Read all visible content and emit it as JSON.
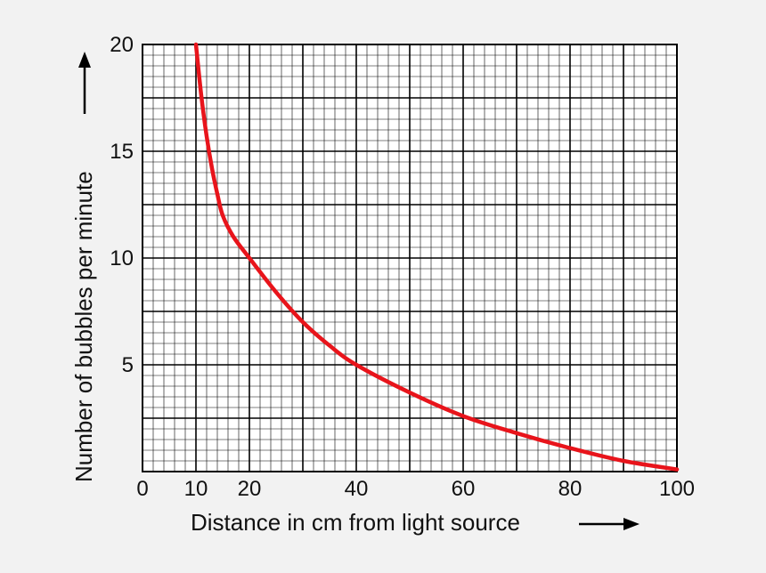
{
  "chart_data": {
    "type": "line",
    "title": "",
    "xlabel": "Distance in cm from light source",
    "ylabel": "Number of bubbles per minute",
    "xlim": [
      0,
      100
    ],
    "ylim": [
      0,
      20
    ],
    "grid": true,
    "x_ticks": [
      {
        "value": 0,
        "label": "0"
      },
      {
        "value": 10,
        "label": "10"
      },
      {
        "value": 20,
        "label": "20"
      },
      {
        "value": 40,
        "label": "40"
      },
      {
        "value": 60,
        "label": "60"
      },
      {
        "value": 80,
        "label": "80"
      },
      {
        "value": 100,
        "label": "100"
      }
    ],
    "y_ticks": [
      {
        "value": 5,
        "label": "5"
      },
      {
        "value": 10,
        "label": "10"
      },
      {
        "value": 15,
        "label": "15"
      },
      {
        "value": 20,
        "label": "20"
      }
    ],
    "series": [
      {
        "color": "#e8141b",
        "x": [
          10,
          11,
          12,
          13,
          14,
          15,
          17,
          20,
          25,
          30,
          35,
          40,
          50,
          60,
          70,
          80,
          90,
          100
        ],
        "y": [
          20,
          17.6,
          15.7,
          14.2,
          13.0,
          12.0,
          11.0,
          10.0,
          8.4,
          7.0,
          5.9,
          5.0,
          3.7,
          2.6,
          1.8,
          1.1,
          0.5,
          0.1
        ]
      }
    ]
  }
}
